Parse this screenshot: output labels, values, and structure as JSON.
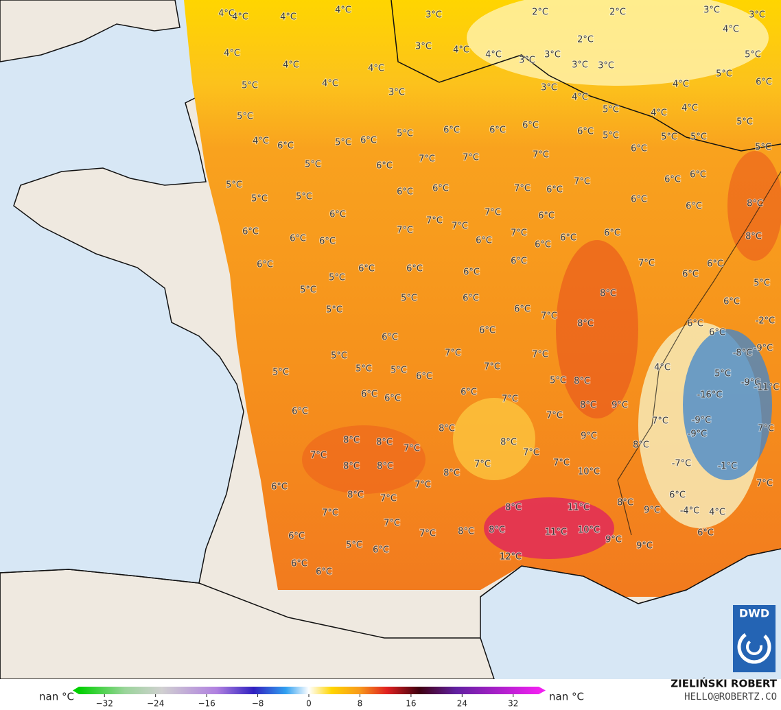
{
  "map": {
    "labels": [
      "4°C",
      "4°C",
      "4°C",
      "4°C",
      "3°C",
      "2°C",
      "2°C",
      "3°C",
      "3°C",
      "4°C",
      "4°C",
      "4°C",
      "3°C",
      "4°C",
      "4°C",
      "3°C",
      "3°C",
      "2°C",
      "3°C",
      "3°C",
      "4°C",
      "5°C",
      "5°C",
      "6°C",
      "5°C",
      "4°C",
      "3°C",
      "3°C",
      "4°C",
      "4°C",
      "5°C",
      "4°C",
      "4°C",
      "5°C",
      "5°C",
      "4°C",
      "6°C",
      "5°C",
      "6°C",
      "5°C",
      "6°C",
      "6°C",
      "6°C",
      "6°C",
      "5°C",
      "5°C",
      "5°C",
      "5°C",
      "5°C",
      "6°C",
      "7°C",
      "7°C",
      "7°C",
      "6°C",
      "5°C",
      "5°C",
      "5°C",
      "6°C",
      "6°C",
      "7°C",
      "6°C",
      "7°C",
      "6°C",
      "6°C",
      "6°C",
      "6°C",
      "8°C",
      "6°C",
      "7°C",
      "6°C",
      "6°C",
      "6°C",
      "6°C",
      "7°C",
      "7°C",
      "7°C",
      "6°C",
      "7°C",
      "6°C",
      "6°C",
      "6°C",
      "8°C",
      "6°C",
      "6°C",
      "6°C",
      "6°C",
      "6°C",
      "7°C",
      "6°C",
      "6°C",
      "5°C",
      "5°C",
      "5°C",
      "6°C",
      "8°C",
      "5°C",
      "6°C",
      "5°C",
      "6°C",
      "7°C",
      "8°C",
      "6°C",
      "-2°C",
      "6°C",
      "6°C",
      "6°C",
      "5°C",
      "7°C",
      "7°C",
      "7°C",
      "-8°C",
      "-9°C",
      "5°C",
      "5°C",
      "5°C",
      "6°C",
      "5°C",
      "8°C",
      "4°C",
      "5°C",
      "-9°C",
      "-11°C",
      "6°C",
      "6°C",
      "6°C",
      "7°C",
      "8°C",
      "9°C",
      "-16°C",
      "6°C",
      "7°C",
      "7°C",
      "-9°C",
      "7°C",
      "8°C",
      "8°C",
      "8°C",
      "9°C",
      "-9°C",
      "8°C",
      "7°C",
      "7°C",
      "8°C",
      "7°C",
      "7°C",
      "-7°C",
      "-1°C",
      "8°C",
      "8°C",
      "8°C",
      "7°C",
      "10°C",
      "6°C",
      "7°C",
      "8°C",
      "7°C",
      "7°C",
      "6°C",
      "7°C",
      "8°C",
      "11°C",
      "8°C",
      "9°C",
      "-4°C",
      "4°C",
      "7°C",
      "7°C",
      "8°C",
      "8°C",
      "11°C",
      "10°C",
      "9°C",
      "6°C",
      "6°C",
      "5°C",
      "6°C",
      "9°C",
      "12°C",
      "6°C",
      "6°C"
    ]
  },
  "legend": {
    "left_label": "nan °C",
    "right_label": "nan °C",
    "range": [
      -36,
      36
    ],
    "ticks": [
      {
        "value": -32,
        "label": "−32"
      },
      {
        "value": -24,
        "label": "−24"
      },
      {
        "value": -16,
        "label": "−16"
      },
      {
        "value": -8,
        "label": "−8"
      },
      0,
      8,
      16,
      24,
      32
    ]
  },
  "logo": "DWD",
  "credit": {
    "name": "ZIELIŃSKI ROBERT",
    "email": "HELLO@ROBERTZ.CO"
  }
}
